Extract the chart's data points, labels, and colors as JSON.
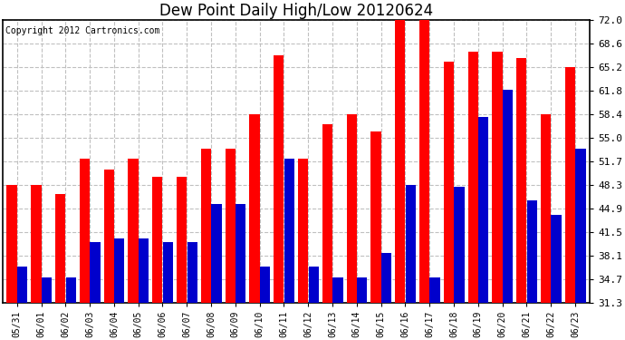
{
  "title": "Dew Point Daily High/Low 20120624",
  "copyright": "Copyright 2012 Cartronics.com",
  "categories": [
    "05/31",
    "06/01",
    "06/02",
    "06/03",
    "06/04",
    "06/05",
    "06/06",
    "06/07",
    "06/08",
    "06/09",
    "06/10",
    "06/11",
    "06/12",
    "06/13",
    "06/14",
    "06/15",
    "06/16",
    "06/17",
    "06/18",
    "06/19",
    "06/20",
    "06/21",
    "06/22",
    "06/23"
  ],
  "high_values": [
    48.3,
    48.3,
    47.0,
    52.0,
    50.5,
    52.0,
    49.5,
    49.5,
    53.5,
    53.5,
    58.5,
    67.0,
    52.0,
    57.0,
    58.4,
    56.0,
    72.0,
    72.0,
    66.0,
    67.5,
    67.5,
    66.5,
    58.4,
    65.2
  ],
  "low_values": [
    36.5,
    35.0,
    35.0,
    40.0,
    40.5,
    40.5,
    40.0,
    40.0,
    45.5,
    45.5,
    36.5,
    52.0,
    36.5,
    35.0,
    35.0,
    38.5,
    48.3,
    35.0,
    48.0,
    58.0,
    62.0,
    46.0,
    44.0,
    53.5
  ],
  "high_color": "#ff0000",
  "low_color": "#0000cc",
  "bg_color": "#ffffff",
  "grid_color": "#c0c0c0",
  "ymin": 31.3,
  "ymax": 72.0,
  "yticks": [
    31.3,
    34.7,
    38.1,
    41.5,
    44.9,
    48.3,
    51.7,
    55.0,
    58.4,
    61.8,
    65.2,
    68.6,
    72.0
  ],
  "title_fontsize": 12,
  "copyright_fontsize": 7,
  "figwidth": 6.9,
  "figheight": 3.75,
  "dpi": 100
}
